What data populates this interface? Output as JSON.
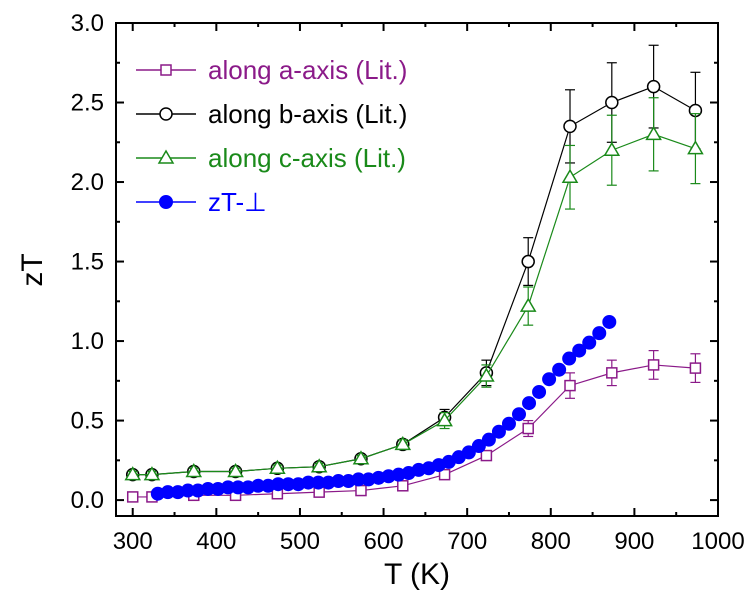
{
  "chart_data": {
    "type": "scatter",
    "title": "",
    "xlabel": "T (K)",
    "ylabel": "zT",
    "xlim": [
      280,
      1000
    ],
    "ylim": [
      -0.1,
      3.0
    ],
    "xticks": [
      300,
      400,
      500,
      600,
      700,
      800,
      900,
      1000
    ],
    "xtick_labels": [
      "300",
      "400",
      "500",
      "600",
      "700",
      "800",
      "900",
      "1000"
    ],
    "yticks": [
      0.0,
      0.5,
      1.0,
      1.5,
      2.0,
      2.5,
      3.0
    ],
    "ytick_labels": [
      "0.0",
      "0.5",
      "1.0",
      "1.5",
      "2.0",
      "2.5",
      "3.0"
    ],
    "grid": false,
    "legend_position": "top-left",
    "series": [
      {
        "name": "along a-axis (Lit.)",
        "color": "#8b1a89",
        "marker": "open-square",
        "line": true,
        "x": [
          300,
          323,
          373,
          423,
          473,
          523,
          573,
          623,
          673,
          723,
          773,
          823,
          873,
          923,
          973
        ],
        "y": [
          0.02,
          0.02,
          0.03,
          0.03,
          0.04,
          0.05,
          0.06,
          0.09,
          0.16,
          0.28,
          0.45,
          0.72,
          0.8,
          0.85,
          0.83
        ],
        "err": [
          0.02,
          0.02,
          0.02,
          0.02,
          0.02,
          0.02,
          0.02,
          0.02,
          0.03,
          0.03,
          0.05,
          0.08,
          0.08,
          0.09,
          0.09
        ]
      },
      {
        "name": "along b-axis (Lit.)",
        "color": "#000000",
        "marker": "open-circle",
        "line": true,
        "x": [
          300,
          323,
          373,
          423,
          473,
          523,
          573,
          623,
          673,
          723,
          773,
          823,
          873,
          923,
          973
        ],
        "y": [
          0.16,
          0.16,
          0.18,
          0.18,
          0.2,
          0.21,
          0.26,
          0.35,
          0.52,
          0.8,
          1.5,
          2.35,
          2.5,
          2.6,
          2.45
        ],
        "err": [
          0.02,
          0.02,
          0.02,
          0.02,
          0.02,
          0.02,
          0.02,
          0.03,
          0.05,
          0.08,
          0.15,
          0.23,
          0.25,
          0.26,
          0.24
        ]
      },
      {
        "name": "along c-axis (Lit.)",
        "color": "#1a8a1a",
        "marker": "open-triangle",
        "line": true,
        "x": [
          300,
          323,
          373,
          423,
          473,
          523,
          573,
          623,
          673,
          723,
          773,
          823,
          873,
          923,
          973
        ],
        "y": [
          0.16,
          0.16,
          0.18,
          0.18,
          0.2,
          0.21,
          0.26,
          0.35,
          0.5,
          0.78,
          1.22,
          2.03,
          2.2,
          2.3,
          2.21
        ],
        "err": [
          0.02,
          0.02,
          0.02,
          0.02,
          0.02,
          0.02,
          0.02,
          0.03,
          0.05,
          0.07,
          0.12,
          0.2,
          0.22,
          0.23,
          0.22
        ]
      },
      {
        "name": "zT-⊥",
        "color": "#0000ff",
        "marker": "filled-circle",
        "line": false,
        "x": [
          330,
          342,
          354,
          366,
          378,
          390,
          402,
          414,
          426,
          438,
          450,
          462,
          474,
          486,
          498,
          510,
          522,
          534,
          546,
          558,
          570,
          582,
          594,
          606,
          618,
          630,
          642,
          654,
          666,
          678,
          690,
          702,
          714,
          726,
          738,
          750,
          762,
          774,
          786,
          798,
          810,
          822,
          834,
          846,
          858,
          870
        ],
        "y": [
          0.04,
          0.05,
          0.05,
          0.06,
          0.06,
          0.07,
          0.07,
          0.08,
          0.08,
          0.08,
          0.09,
          0.09,
          0.1,
          0.1,
          0.1,
          0.11,
          0.11,
          0.11,
          0.12,
          0.12,
          0.13,
          0.13,
          0.14,
          0.15,
          0.16,
          0.17,
          0.19,
          0.2,
          0.22,
          0.24,
          0.27,
          0.3,
          0.34,
          0.38,
          0.43,
          0.48,
          0.54,
          0.61,
          0.68,
          0.76,
          0.82,
          0.89,
          0.94,
          0.99,
          1.05,
          1.12
        ]
      }
    ]
  }
}
